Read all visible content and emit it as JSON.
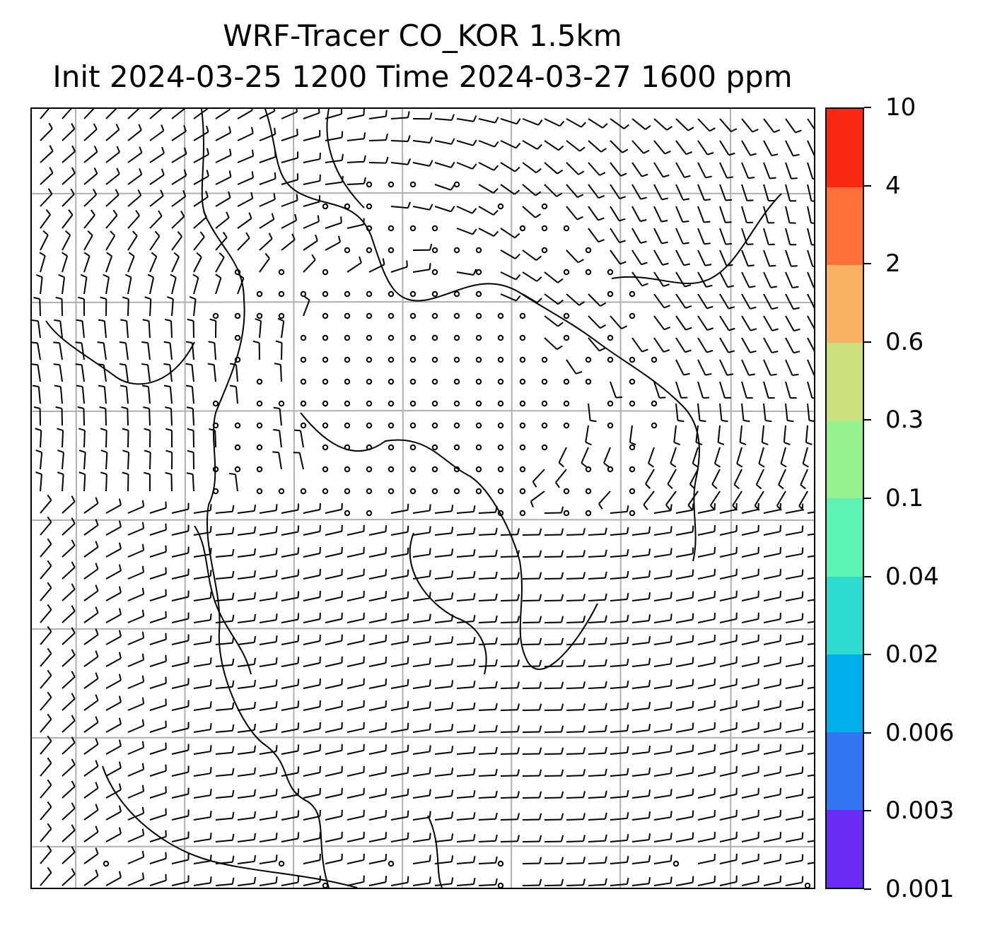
{
  "figure": {
    "title_line1": "WRF-Tracer CO_KOR 1.5km",
    "title_line2": "Init 2024-03-25 1200 Time 2024-03-27 1600 ppm"
  },
  "map": {
    "gridlines": "on",
    "gridline_color": "#b0b0b0",
    "barb_color": "#000000",
    "coastline_color": "#000000",
    "content": "wind barbs over a map with coastlines; calm points marked as circles"
  },
  "colorbar": {
    "orientation": "vertical",
    "position": "right",
    "levels": [
      "0.001",
      "0.003",
      "0.006",
      "0.02",
      "0.04",
      "0.1",
      "0.3",
      "0.6",
      "2",
      "4",
      "10"
    ],
    "colors": [
      "#6a2cf5",
      "#3374f0",
      "#00aeea",
      "#2ddccf",
      "#5ef2b4",
      "#96f28e",
      "#cde07e",
      "#f9b263",
      "#fe6f3a",
      "#f92814"
    ]
  }
}
